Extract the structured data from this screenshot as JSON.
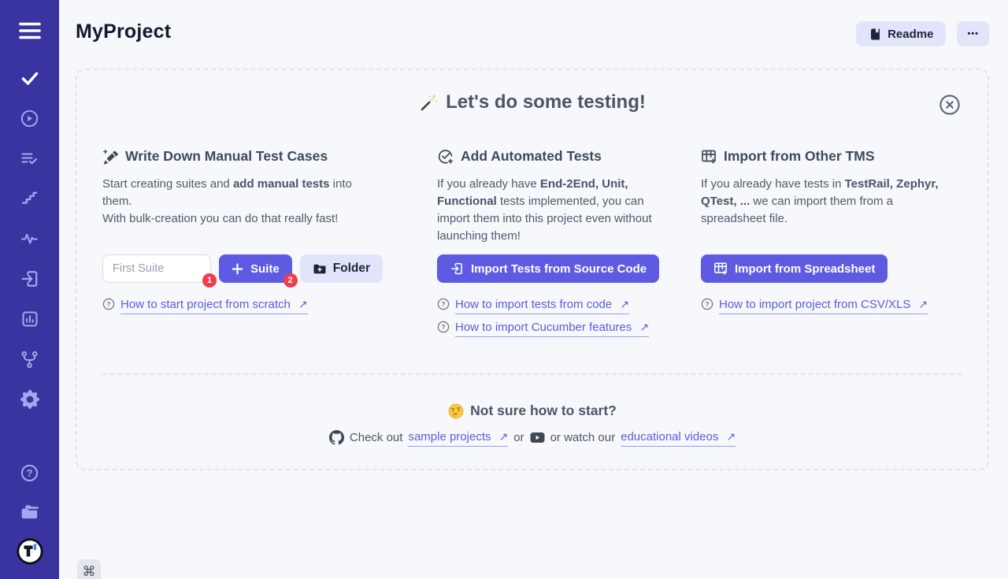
{
  "app": {
    "colors": {
      "sidebar_bg": "#39349f",
      "accent_indigo": "#5e5be2",
      "light_button_bg": "#e2e5f9",
      "badge_red": "#ee3e4d",
      "page_bg": "#f7f8fb"
    }
  },
  "sidebar": {
    "menu_icon": "hamburger-icon",
    "nav_icons": [
      "tests-check-icon",
      "runs-play-icon",
      "plans-list-check-icon",
      "steps-icon",
      "pulse-icon",
      "import-icon",
      "analytics-icon",
      "branches-icon",
      "settings-gear-icon"
    ],
    "bottom_icons": [
      "help-icon",
      "projects-folders-icon",
      "logo"
    ]
  },
  "header": {
    "title": "MyProject",
    "readme_button": "Readme",
    "more_button": "•••"
  },
  "onboarding": {
    "title": "Let's do some testing!",
    "columns": [
      {
        "title": "Write Down Manual Test Cases",
        "icon": "pen-plus-icon",
        "description": [
          {
            "t": "Start creating suites and "
          },
          {
            "t": "add manual tests",
            "b": true
          },
          {
            "t": " into them."
          },
          {
            "br": true
          },
          {
            "t": "With bulk-creation you can do that really fast!"
          }
        ],
        "input_placeholder": "First Suite",
        "input_badge": "1",
        "suite_button": "Suite",
        "suite_badge": "2",
        "folder_button": "Folder",
        "links": [
          {
            "text": "How to start project from scratch",
            "arrow": "↗"
          }
        ]
      },
      {
        "title": "Add Automated Tests",
        "icon": "check-circle-plus-icon",
        "description": [
          {
            "t": "If you already have "
          },
          {
            "t": "End-2End, Unit, Functional",
            "b": true
          },
          {
            "t": " tests implemented, you can import them into this project even without launching them!"
          }
        ],
        "button": "Import Tests from Source Code",
        "links": [
          {
            "text": "How to import tests from code",
            "arrow": "↗"
          },
          {
            "text": "How to import Cucumber features",
            "arrow": "↗"
          }
        ]
      },
      {
        "title": "Import from Other TMS",
        "icon": "table-plus-icon",
        "description": [
          {
            "t": "If you already have tests in "
          },
          {
            "t": "TestRail, Zephyr, QTest, ...",
            "b": true
          },
          {
            "t": " we can import them from a spreadsheet file."
          }
        ],
        "button": "Import from Spreadsheet",
        "links": [
          {
            "text": "How to import project from CSV/XLS",
            "arrow": "↗"
          }
        ]
      }
    ],
    "footer": {
      "title": "Not sure how to start?",
      "check_out": "Check out",
      "sample_link": "sample projects",
      "sample_arrow": "↗",
      "or1": "or",
      "or2": "or watch our",
      "videos_link": "educational videos",
      "videos_arrow": "↗"
    }
  },
  "shortcut": {
    "key": "⌘"
  }
}
